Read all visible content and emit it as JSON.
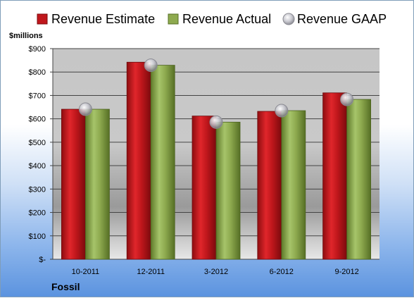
{
  "chart_data": {
    "type": "bar",
    "categories": [
      "10-2011",
      "12-2011",
      "3-2012",
      "6-2012",
      "9-2012"
    ],
    "series": [
      {
        "name": "Revenue Estimate",
        "values": [
          641,
          842,
          612,
          632,
          711
        ],
        "color": "#c0171c"
      },
      {
        "name": "Revenue Actual",
        "values": [
          641,
          829,
          586,
          635,
          683
        ],
        "color": "#8eaa4f"
      },
      {
        "name": "Revenue GAAP",
        "values": [
          641,
          829,
          586,
          635,
          683
        ],
        "marker": "circle",
        "color": "#b8b8c0"
      }
    ],
    "units_label": "$millions",
    "ylim": [
      0,
      900
    ],
    "yticks": [
      0,
      100,
      200,
      300,
      400,
      500,
      600,
      700,
      800,
      900
    ],
    "ytick_labels": [
      "$-",
      "$100",
      "$200",
      "$300",
      "$400",
      "$500",
      "$600",
      "$700",
      "$800",
      "$900"
    ],
    "grid": true,
    "legend_position": "top",
    "company": "Fossil"
  }
}
